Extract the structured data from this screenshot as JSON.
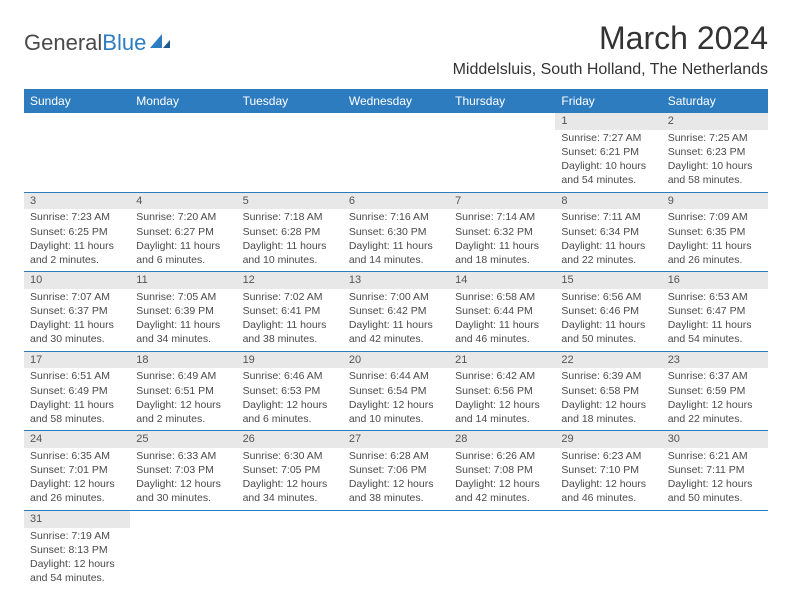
{
  "logo": {
    "text1": "General",
    "text2": "Blue"
  },
  "title": "March 2024",
  "location": "Middelsluis, South Holland, The Netherlands",
  "colors": {
    "header_bg": "#2e7cc0",
    "header_fg": "#ffffff",
    "daynum_bg": "#e8e8e8",
    "row_border": "#2e7cc0",
    "text": "#4a4a4a"
  },
  "weekdays": [
    "Sunday",
    "Monday",
    "Tuesday",
    "Wednesday",
    "Thursday",
    "Friday",
    "Saturday"
  ],
  "weeks": [
    [
      {
        "n": "",
        "sr": "",
        "ss": "",
        "dl": ""
      },
      {
        "n": "",
        "sr": "",
        "ss": "",
        "dl": ""
      },
      {
        "n": "",
        "sr": "",
        "ss": "",
        "dl": ""
      },
      {
        "n": "",
        "sr": "",
        "ss": "",
        "dl": ""
      },
      {
        "n": "",
        "sr": "",
        "ss": "",
        "dl": ""
      },
      {
        "n": "1",
        "sr": "Sunrise: 7:27 AM",
        "ss": "Sunset: 6:21 PM",
        "dl": "Daylight: 10 hours and 54 minutes."
      },
      {
        "n": "2",
        "sr": "Sunrise: 7:25 AM",
        "ss": "Sunset: 6:23 PM",
        "dl": "Daylight: 10 hours and 58 minutes."
      }
    ],
    [
      {
        "n": "3",
        "sr": "Sunrise: 7:23 AM",
        "ss": "Sunset: 6:25 PM",
        "dl": "Daylight: 11 hours and 2 minutes."
      },
      {
        "n": "4",
        "sr": "Sunrise: 7:20 AM",
        "ss": "Sunset: 6:27 PM",
        "dl": "Daylight: 11 hours and 6 minutes."
      },
      {
        "n": "5",
        "sr": "Sunrise: 7:18 AM",
        "ss": "Sunset: 6:28 PM",
        "dl": "Daylight: 11 hours and 10 minutes."
      },
      {
        "n": "6",
        "sr": "Sunrise: 7:16 AM",
        "ss": "Sunset: 6:30 PM",
        "dl": "Daylight: 11 hours and 14 minutes."
      },
      {
        "n": "7",
        "sr": "Sunrise: 7:14 AM",
        "ss": "Sunset: 6:32 PM",
        "dl": "Daylight: 11 hours and 18 minutes."
      },
      {
        "n": "8",
        "sr": "Sunrise: 7:11 AM",
        "ss": "Sunset: 6:34 PM",
        "dl": "Daylight: 11 hours and 22 minutes."
      },
      {
        "n": "9",
        "sr": "Sunrise: 7:09 AM",
        "ss": "Sunset: 6:35 PM",
        "dl": "Daylight: 11 hours and 26 minutes."
      }
    ],
    [
      {
        "n": "10",
        "sr": "Sunrise: 7:07 AM",
        "ss": "Sunset: 6:37 PM",
        "dl": "Daylight: 11 hours and 30 minutes."
      },
      {
        "n": "11",
        "sr": "Sunrise: 7:05 AM",
        "ss": "Sunset: 6:39 PM",
        "dl": "Daylight: 11 hours and 34 minutes."
      },
      {
        "n": "12",
        "sr": "Sunrise: 7:02 AM",
        "ss": "Sunset: 6:41 PM",
        "dl": "Daylight: 11 hours and 38 minutes."
      },
      {
        "n": "13",
        "sr": "Sunrise: 7:00 AM",
        "ss": "Sunset: 6:42 PM",
        "dl": "Daylight: 11 hours and 42 minutes."
      },
      {
        "n": "14",
        "sr": "Sunrise: 6:58 AM",
        "ss": "Sunset: 6:44 PM",
        "dl": "Daylight: 11 hours and 46 minutes."
      },
      {
        "n": "15",
        "sr": "Sunrise: 6:56 AM",
        "ss": "Sunset: 6:46 PM",
        "dl": "Daylight: 11 hours and 50 minutes."
      },
      {
        "n": "16",
        "sr": "Sunrise: 6:53 AM",
        "ss": "Sunset: 6:47 PM",
        "dl": "Daylight: 11 hours and 54 minutes."
      }
    ],
    [
      {
        "n": "17",
        "sr": "Sunrise: 6:51 AM",
        "ss": "Sunset: 6:49 PM",
        "dl": "Daylight: 11 hours and 58 minutes."
      },
      {
        "n": "18",
        "sr": "Sunrise: 6:49 AM",
        "ss": "Sunset: 6:51 PM",
        "dl": "Daylight: 12 hours and 2 minutes."
      },
      {
        "n": "19",
        "sr": "Sunrise: 6:46 AM",
        "ss": "Sunset: 6:53 PM",
        "dl": "Daylight: 12 hours and 6 minutes."
      },
      {
        "n": "20",
        "sr": "Sunrise: 6:44 AM",
        "ss": "Sunset: 6:54 PM",
        "dl": "Daylight: 12 hours and 10 minutes."
      },
      {
        "n": "21",
        "sr": "Sunrise: 6:42 AM",
        "ss": "Sunset: 6:56 PM",
        "dl": "Daylight: 12 hours and 14 minutes."
      },
      {
        "n": "22",
        "sr": "Sunrise: 6:39 AM",
        "ss": "Sunset: 6:58 PM",
        "dl": "Daylight: 12 hours and 18 minutes."
      },
      {
        "n": "23",
        "sr": "Sunrise: 6:37 AM",
        "ss": "Sunset: 6:59 PM",
        "dl": "Daylight: 12 hours and 22 minutes."
      }
    ],
    [
      {
        "n": "24",
        "sr": "Sunrise: 6:35 AM",
        "ss": "Sunset: 7:01 PM",
        "dl": "Daylight: 12 hours and 26 minutes."
      },
      {
        "n": "25",
        "sr": "Sunrise: 6:33 AM",
        "ss": "Sunset: 7:03 PM",
        "dl": "Daylight: 12 hours and 30 minutes."
      },
      {
        "n": "26",
        "sr": "Sunrise: 6:30 AM",
        "ss": "Sunset: 7:05 PM",
        "dl": "Daylight: 12 hours and 34 minutes."
      },
      {
        "n": "27",
        "sr": "Sunrise: 6:28 AM",
        "ss": "Sunset: 7:06 PM",
        "dl": "Daylight: 12 hours and 38 minutes."
      },
      {
        "n": "28",
        "sr": "Sunrise: 6:26 AM",
        "ss": "Sunset: 7:08 PM",
        "dl": "Daylight: 12 hours and 42 minutes."
      },
      {
        "n": "29",
        "sr": "Sunrise: 6:23 AM",
        "ss": "Sunset: 7:10 PM",
        "dl": "Daylight: 12 hours and 46 minutes."
      },
      {
        "n": "30",
        "sr": "Sunrise: 6:21 AM",
        "ss": "Sunset: 7:11 PM",
        "dl": "Daylight: 12 hours and 50 minutes."
      }
    ],
    [
      {
        "n": "31",
        "sr": "Sunrise: 7:19 AM",
        "ss": "Sunset: 8:13 PM",
        "dl": "Daylight: 12 hours and 54 minutes."
      },
      {
        "n": "",
        "sr": "",
        "ss": "",
        "dl": ""
      },
      {
        "n": "",
        "sr": "",
        "ss": "",
        "dl": ""
      },
      {
        "n": "",
        "sr": "",
        "ss": "",
        "dl": ""
      },
      {
        "n": "",
        "sr": "",
        "ss": "",
        "dl": ""
      },
      {
        "n": "",
        "sr": "",
        "ss": "",
        "dl": ""
      },
      {
        "n": "",
        "sr": "",
        "ss": "",
        "dl": ""
      }
    ]
  ]
}
